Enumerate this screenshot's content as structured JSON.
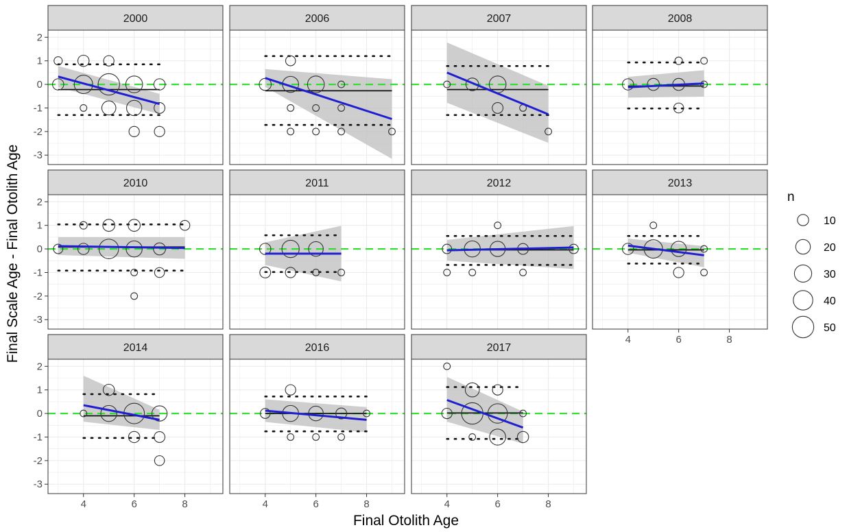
{
  "chart_data": {
    "type": "scatter",
    "xlabel": "Final Otolith Age",
    "ylabel": "Final Scale Age - Final Otolith Age",
    "xlim": [
      2.6,
      9.5
    ],
    "ylim": [
      -3.4,
      2.3
    ],
    "x_ticks": [
      4,
      6,
      8
    ],
    "y_ticks": [
      -3,
      -2,
      -1,
      0,
      1,
      2
    ],
    "grid": true,
    "reference_line": {
      "y": 0,
      "color": "#33dd33",
      "style": "dashed"
    },
    "legend": {
      "title": "n",
      "placement": "right",
      "entries": [
        {
          "label": "10",
          "n": 10
        },
        {
          "label": "20",
          "n": 20
        },
        {
          "label": "30",
          "n": 30
        },
        {
          "label": "40",
          "n": 40
        },
        {
          "label": "50",
          "n": 50
        }
      ]
    },
    "colors": {
      "regression": "#1f1fd1",
      "mean": "#111111",
      "ci_band": "#bdbdbd",
      "strip": "#d9d9d9",
      "zero_line": "#33dd33"
    },
    "panels": [
      {
        "label": "2000",
        "points": [
          {
            "x": 3,
            "y": 1,
            "n": 4
          },
          {
            "x": 3,
            "y": 0,
            "n": 10
          },
          {
            "x": 4,
            "y": 1,
            "n": 10
          },
          {
            "x": 4,
            "y": 0,
            "n": 35
          },
          {
            "x": 4,
            "y": -1,
            "n": 2
          },
          {
            "x": 5,
            "y": 1,
            "n": 8
          },
          {
            "x": 5,
            "y": 0,
            "n": 50
          },
          {
            "x": 5,
            "y": -1,
            "n": 18
          },
          {
            "x": 6,
            "y": 0,
            "n": 28
          },
          {
            "x": 6,
            "y": -1,
            "n": 22
          },
          {
            "x": 6,
            "y": -2,
            "n": 8
          },
          {
            "x": 7,
            "y": 0,
            "n": 10
          },
          {
            "x": 7,
            "y": -1,
            "n": 9
          },
          {
            "x": 7,
            "y": -2,
            "n": 8
          }
        ],
        "mean": -0.22,
        "loa": [
          0.85,
          -1.3
        ],
        "fit": {
          "x": [
            3,
            7
          ],
          "y": [
            0.33,
            -0.83
          ]
        },
        "ci": {
          "upper": [
            0.78,
            -0.4
          ],
          "lower": [
            -0.12,
            -1.26
          ]
        }
      },
      {
        "label": "2006",
        "points": [
          {
            "x": 4,
            "y": 0,
            "n": 12
          },
          {
            "x": 5,
            "y": 1,
            "n": 7
          },
          {
            "x": 5,
            "y": 0,
            "n": 25
          },
          {
            "x": 5,
            "y": -1,
            "n": 2
          },
          {
            "x": 5,
            "y": -2,
            "n": 2
          },
          {
            "x": 6,
            "y": 0,
            "n": 28
          },
          {
            "x": 6,
            "y": -1,
            "n": 2
          },
          {
            "x": 6,
            "y": -2,
            "n": 2
          },
          {
            "x": 7,
            "y": 0,
            "n": 2
          },
          {
            "x": 7,
            "y": -1,
            "n": 2
          },
          {
            "x": 7,
            "y": -2,
            "n": 2
          },
          {
            "x": 9,
            "y": -2,
            "n": 2
          }
        ],
        "mean": -0.27,
        "loa": [
          1.2,
          -1.72
        ],
        "fit": {
          "x": [
            4,
            9
          ],
          "y": [
            0.27,
            -1.47
          ]
        },
        "ci": {
          "upper": [
            0.65,
            0.22
          ],
          "lower": [
            -0.11,
            -3.16
          ]
        }
      },
      {
        "label": "2007",
        "points": [
          {
            "x": 4,
            "y": 0,
            "n": 2
          },
          {
            "x": 5,
            "y": 0,
            "n": 14
          },
          {
            "x": 6,
            "y": 0,
            "n": 28
          },
          {
            "x": 6,
            "y": -1,
            "n": 9
          },
          {
            "x": 7,
            "y": -1,
            "n": 2
          },
          {
            "x": 8,
            "y": -2,
            "n": 2
          }
        ],
        "mean": -0.22,
        "loa": [
          0.78,
          -1.3
        ],
        "fit": {
          "x": [
            4,
            8
          ],
          "y": [
            0.5,
            -1.27
          ]
        },
        "ci": {
          "upper": [
            1.78,
            -0.06
          ],
          "lower": [
            -0.78,
            -2.48
          ]
        }
      },
      {
        "label": "2008",
        "points": [
          {
            "x": 4,
            "y": 0,
            "n": 10
          },
          {
            "x": 5,
            "y": 0,
            "n": 12
          },
          {
            "x": 6,
            "y": 1,
            "n": 3
          },
          {
            "x": 6,
            "y": 0,
            "n": 12
          },
          {
            "x": 6,
            "y": -1,
            "n": 7
          },
          {
            "x": 7,
            "y": 1,
            "n": 2
          },
          {
            "x": 7,
            "y": 0,
            "n": 2
          }
        ],
        "mean": -0.07,
        "loa": [
          0.93,
          -1.02
        ],
        "fit": {
          "x": [
            4,
            7
          ],
          "y": [
            -0.12,
            0.04
          ]
        },
        "ci": {
          "upper": [
            0.32,
            0.6
          ],
          "lower": [
            -0.56,
            -0.52
          ]
        }
      },
      {
        "label": "2010",
        "points": [
          {
            "x": 3,
            "y": 0,
            "n": 6
          },
          {
            "x": 4,
            "y": 1,
            "n": 3
          },
          {
            "x": 4,
            "y": 0,
            "n": 10
          },
          {
            "x": 5,
            "y": 1,
            "n": 12
          },
          {
            "x": 5,
            "y": 0,
            "n": 40
          },
          {
            "x": 6,
            "y": 1,
            "n": 12
          },
          {
            "x": 6,
            "y": 0,
            "n": 25
          },
          {
            "x": 6,
            "y": -1,
            "n": 2
          },
          {
            "x": 6,
            "y": -2,
            "n": 2
          },
          {
            "x": 7,
            "y": 0,
            "n": 12
          },
          {
            "x": 7,
            "y": -1,
            "n": 7
          },
          {
            "x": 8,
            "y": 1,
            "n": 7
          }
        ],
        "mean": 0.08,
        "loa": [
          1.04,
          -0.92
        ],
        "fit": {
          "x": [
            3,
            8
          ],
          "y": [
            0.12,
            0.04
          ]
        },
        "ci": {
          "upper": [
            0.5,
            0.5
          ],
          "lower": [
            -0.26,
            -0.42
          ]
        }
      },
      {
        "label": "2011",
        "points": [
          {
            "x": 4,
            "y": 0,
            "n": 10
          },
          {
            "x": 4,
            "y": -1,
            "n": 9
          },
          {
            "x": 5,
            "y": 0,
            "n": 30
          },
          {
            "x": 5,
            "y": -1,
            "n": 8
          },
          {
            "x": 6,
            "y": 0,
            "n": 20
          },
          {
            "x": 6,
            "y": -1,
            "n": 2
          },
          {
            "x": 7,
            "y": -1,
            "n": 2
          }
        ],
        "mean": -0.2,
        "loa": [
          0.58,
          -0.98
        ],
        "fit": {
          "x": [
            4,
            7
          ],
          "y": [
            -0.2,
            -0.2
          ]
        },
        "ci": {
          "upper": [
            0.28,
            0.98
          ],
          "lower": [
            -0.68,
            -1.38
          ]
        }
      },
      {
        "label": "2012",
        "points": [
          {
            "x": 4,
            "y": 0,
            "n": 6
          },
          {
            "x": 4,
            "y": -1,
            "n": 2
          },
          {
            "x": 5,
            "y": 0,
            "n": 25
          },
          {
            "x": 5,
            "y": -1,
            "n": 2
          },
          {
            "x": 6,
            "y": 1,
            "n": 2
          },
          {
            "x": 6,
            "y": 0,
            "n": 22
          },
          {
            "x": 7,
            "y": 0,
            "n": 9
          },
          {
            "x": 7,
            "y": -1,
            "n": 2
          },
          {
            "x": 9,
            "y": 0,
            "n": 6
          }
        ],
        "mean": -0.04,
        "loa": [
          0.55,
          -0.68
        ],
        "fit": {
          "x": [
            4,
            9
          ],
          "y": [
            -0.06,
            0.06
          ]
        },
        "ci": {
          "upper": [
            0.38,
            0.97
          ],
          "lower": [
            -0.5,
            -0.85
          ]
        }
      },
      {
        "label": "2013",
        "points": [
          {
            "x": 4,
            "y": 0,
            "n": 10
          },
          {
            "x": 5,
            "y": 1,
            "n": 2
          },
          {
            "x": 5,
            "y": 0,
            "n": 35
          },
          {
            "x": 6,
            "y": 0,
            "n": 22
          },
          {
            "x": 6,
            "y": -1,
            "n": 8
          },
          {
            "x": 7,
            "y": 0,
            "n": 2
          },
          {
            "x": 7,
            "y": -1,
            "n": 2
          }
        ],
        "mean": -0.04,
        "loa": [
          0.55,
          -0.62
        ],
        "fit": {
          "x": [
            4,
            7
          ],
          "y": [
            0.14,
            -0.27
          ]
        },
        "ci": {
          "upper": [
            0.44,
            0.12
          ],
          "lower": [
            -0.16,
            -0.78
          ]
        }
      },
      {
        "label": "2014",
        "points": [
          {
            "x": 4,
            "y": 0,
            "n": 2
          },
          {
            "x": 5,
            "y": 1,
            "n": 10
          },
          {
            "x": 5,
            "y": 0,
            "n": 25
          },
          {
            "x": 6,
            "y": 0,
            "n": 45
          },
          {
            "x": 6,
            "y": -1,
            "n": 10
          },
          {
            "x": 7,
            "y": 0,
            "n": 22
          },
          {
            "x": 7,
            "y": -1,
            "n": 9
          },
          {
            "x": 7,
            "y": -2,
            "n": 7
          }
        ],
        "mean": -0.1,
        "loa": [
          0.82,
          -1.04
        ],
        "fit": {
          "x": [
            4,
            7
          ],
          "y": [
            0.35,
            -0.27
          ]
        },
        "ci": {
          "upper": [
            1.6,
            0.15
          ],
          "lower": [
            -0.35,
            -0.7
          ]
        }
      },
      {
        "label": "2016",
        "points": [
          {
            "x": 4,
            "y": 0,
            "n": 7
          },
          {
            "x": 5,
            "y": 1,
            "n": 8
          },
          {
            "x": 5,
            "y": 0,
            "n": 25
          },
          {
            "x": 5,
            "y": -1,
            "n": 2
          },
          {
            "x": 6,
            "y": 0,
            "n": 20
          },
          {
            "x": 6,
            "y": -1,
            "n": 2
          },
          {
            "x": 7,
            "y": 0,
            "n": 9
          },
          {
            "x": 7,
            "y": -1,
            "n": 2
          },
          {
            "x": 8,
            "y": 0,
            "n": 2
          }
        ],
        "mean": 0.0,
        "loa": [
          0.72,
          -0.76
        ],
        "fit": {
          "x": [
            4,
            8
          ],
          "y": [
            0.12,
            -0.27
          ]
        },
        "ci": {
          "upper": [
            0.6,
            0.27
          ],
          "lower": [
            -0.36,
            -0.8
          ]
        }
      },
      {
        "label": "2017",
        "points": [
          {
            "x": 4,
            "y": 2,
            "n": 2
          },
          {
            "x": 4,
            "y": 0,
            "n": 8
          },
          {
            "x": 5,
            "y": 1,
            "n": 18
          },
          {
            "x": 5,
            "y": 0,
            "n": 50
          },
          {
            "x": 5,
            "y": -1,
            "n": 2
          },
          {
            "x": 6,
            "y": 1,
            "n": 8
          },
          {
            "x": 6,
            "y": 0,
            "n": 40
          },
          {
            "x": 6,
            "y": -1,
            "n": 25
          },
          {
            "x": 7,
            "y": 0,
            "n": 2
          },
          {
            "x": 7,
            "y": -1,
            "n": 10
          }
        ],
        "mean": 0.02,
        "loa": [
          1.12,
          -1.08
        ],
        "fit": {
          "x": [
            4,
            7
          ],
          "y": [
            0.57,
            -0.6
          ]
        },
        "ci": {
          "upper": [
            1.55,
            0.08
          ],
          "lower": [
            -0.35,
            -1.28
          ]
        }
      }
    ]
  }
}
